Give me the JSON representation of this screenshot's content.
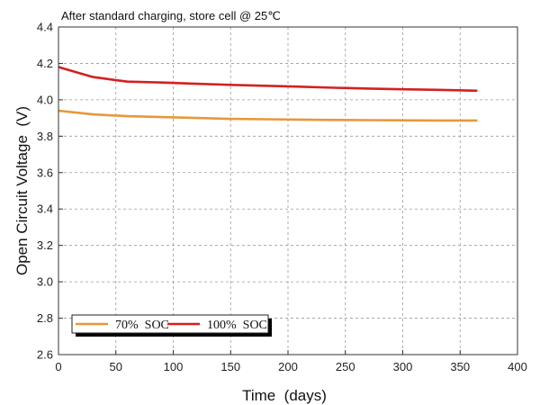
{
  "chart_data": {
    "type": "line",
    "title": "After standard charging, store cell @ 25℃",
    "xlabel": "Time  (days)",
    "ylabel": "Open Circuit Voltage  (V)",
    "xlim": [
      0,
      400
    ],
    "ylim": [
      2.6,
      4.4
    ],
    "xticks": [
      0,
      50,
      100,
      150,
      200,
      250,
      300,
      350,
      400
    ],
    "yticks": [
      2.6,
      2.8,
      3.0,
      3.2,
      3.4,
      3.6,
      3.8,
      4.0,
      4.2,
      4.4
    ],
    "grid": true,
    "legend_position": "bottom-left",
    "series": [
      {
        "name": "70%  SOC",
        "color": "#e8973a",
        "x": [
          0,
          30,
          60,
          90,
          120,
          150,
          180,
          210,
          240,
          270,
          300,
          330,
          365
        ],
        "y": [
          3.94,
          3.92,
          3.91,
          3.905,
          3.9,
          3.895,
          3.893,
          3.891,
          3.889,
          3.888,
          3.887,
          3.886,
          3.886
        ]
      },
      {
        "name": "100%  SOC",
        "color": "#d42020",
        "x": [
          0,
          30,
          60,
          90,
          120,
          150,
          180,
          210,
          240,
          270,
          300,
          330,
          365
        ],
        "y": [
          4.18,
          4.125,
          4.1,
          4.095,
          4.088,
          4.082,
          4.077,
          4.072,
          4.066,
          4.062,
          4.058,
          4.055,
          4.05
        ]
      }
    ]
  }
}
